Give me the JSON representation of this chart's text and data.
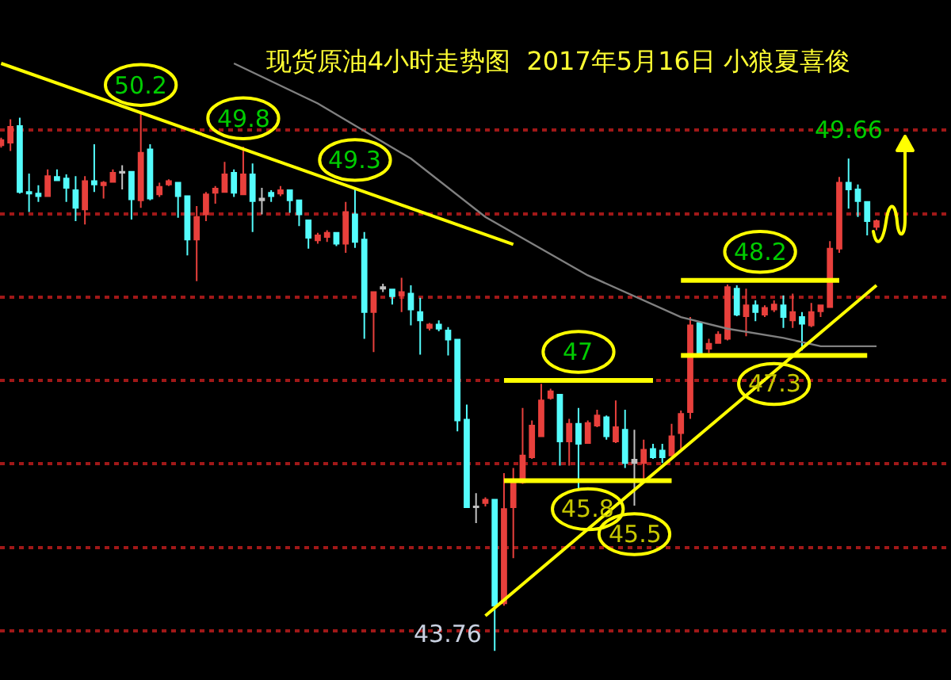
{
  "chart_data": {
    "type": "candlestick",
    "title": "现货原油4小时走势图  2017年5月16日 小狼夏喜俊",
    "categories": [
      null,
      null,
      null,
      null,
      null,
      null,
      null,
      null,
      null,
      null,
      null,
      null,
      null,
      null,
      null,
      null,
      null,
      null,
      null,
      null,
      null,
      null,
      null,
      null,
      null,
      null,
      null,
      null,
      null,
      null,
      null,
      null,
      null,
      null,
      null,
      null,
      null,
      null,
      null,
      null,
      null,
      null,
      null,
      null,
      null,
      null,
      null,
      null,
      null,
      null,
      null,
      null,
      null,
      null,
      null,
      null,
      null,
      null,
      null,
      null,
      null,
      null,
      null,
      null,
      null,
      null,
      null,
      null,
      null,
      null,
      null,
      null,
      null,
      null,
      null,
      null,
      null,
      null,
      null,
      null,
      null,
      null,
      null,
      null,
      null,
      null,
      null,
      null,
      null,
      null,
      null,
      null,
      null,
      null,
      null
    ],
    "ohlc": [
      [
        49.82,
        49.91,
        49.79,
        49.88
      ],
      [
        49.85,
        50.13,
        49.75,
        50.04
      ],
      [
        50.05,
        50.15,
        49.24,
        49.26
      ],
      [
        49.26,
        49.48,
        49.02,
        49.24
      ],
      [
        49.24,
        49.34,
        49.14,
        49.21
      ],
      [
        49.21,
        49.53,
        49.2,
        49.45
      ],
      [
        49.44,
        49.53,
        49.39,
        49.4
      ],
      [
        49.42,
        49.47,
        49.14,
        49.31
      ],
      [
        49.28,
        49.45,
        48.91,
        49.07
      ],
      [
        49.05,
        49.45,
        48.87,
        49.39
      ],
      [
        49.39,
        49.83,
        49.26,
        49.35
      ],
      [
        49.34,
        49.39,
        49.18,
        49.37
      ],
      [
        49.38,
        49.53,
        49.37,
        49.49
      ],
      [
        49.5,
        49.58,
        49.29,
        49.49
      ],
      [
        49.5,
        49.5,
        48.93,
        49.17
      ],
      [
        49.16,
        50.2,
        49.07,
        49.73
      ],
      [
        49.77,
        49.83,
        49.16,
        49.18
      ],
      [
        49.23,
        49.37,
        49.2,
        49.32
      ],
      [
        49.35,
        49.41,
        49.33,
        49.39
      ],
      [
        49.37,
        49.37,
        48.95,
        49.21
      ],
      [
        49.21,
        49.21,
        48.5,
        48.69
      ],
      [
        48.69,
        49.09,
        48.19,
        48.96
      ],
      [
        48.99,
        49.26,
        48.91,
        49.23
      ],
      [
        49.25,
        49.33,
        49.12,
        49.3
      ],
      [
        49.26,
        49.62,
        49.25,
        49.47
      ],
      [
        49.49,
        49.53,
        49.2,
        49.25
      ],
      [
        49.23,
        49.8,
        49.22,
        49.47
      ],
      [
        49.47,
        49.6,
        48.78,
        49.15
      ],
      [
        49.18,
        49.31,
        48.99,
        49.16
      ],
      [
        49.25,
        49.28,
        49.14,
        49.21
      ],
      [
        49.24,
        49.33,
        49.21,
        49.28
      ],
      [
        49.28,
        49.28,
        49.01,
        49.16
      ],
      [
        49.16,
        49.16,
        48.85,
        48.99
      ],
      [
        48.92,
        48.93,
        48.58,
        48.71
      ],
      [
        48.68,
        48.77,
        48.64,
        48.74
      ],
      [
        48.72,
        48.8,
        48.66,
        48.77
      ],
      [
        48.77,
        48.78,
        48.61,
        48.64
      ],
      [
        48.64,
        49.14,
        48.53,
        49.02
      ],
      [
        48.99,
        49.3,
        48.59,
        48.66
      ],
      [
        48.69,
        48.78,
        47.5,
        47.82
      ],
      [
        47.82,
        48.07,
        47.34,
        48.06
      ],
      [
        48.12,
        48.16,
        48.06,
        48.1
      ],
      [
        48.09,
        48.1,
        47.91,
        48.01
      ],
      [
        48.02,
        48.23,
        47.82,
        48.06
      ],
      [
        48.04,
        48.14,
        47.66,
        47.85
      ],
      [
        47.82,
        47.99,
        47.31,
        47.72
      ],
      [
        47.63,
        47.69,
        47.6,
        47.67
      ],
      [
        47.67,
        47.72,
        47.59,
        47.62
      ],
      [
        47.6,
        47.64,
        47.3,
        47.49
      ],
      [
        47.49,
        47.5,
        46.39,
        46.52
      ],
      [
        46.53,
        46.71,
        45.48,
        45.48
      ],
      [
        45.49,
        45.65,
        45.29,
        45.48
      ],
      [
        45.53,
        45.6,
        45.49,
        45.57
      ],
      [
        45.57,
        45.57,
        43.76,
        44.3
      ],
      [
        44.33,
        45.89,
        44.3,
        45.46
      ],
      [
        45.48,
        45.95,
        44.87,
        45.8
      ],
      [
        45.78,
        46.67,
        45.76,
        46.1
      ],
      [
        46.08,
        46.52,
        46.06,
        46.46
      ],
      [
        46.33,
        46.96,
        46.33,
        46.76
      ],
      [
        46.79,
        46.9,
        46.77,
        46.87
      ],
      [
        46.83,
        46.83,
        45.98,
        46.27
      ],
      [
        46.27,
        46.54,
        45.98,
        46.48
      ],
      [
        46.48,
        46.67,
        45.7,
        46.24
      ],
      [
        46.25,
        46.52,
        46.24,
        46.49
      ],
      [
        46.46,
        46.65,
        46.44,
        46.58
      ],
      [
        46.56,
        46.58,
        46.29,
        46.33
      ],
      [
        46.27,
        46.76,
        46.25,
        46.44
      ],
      [
        46.41,
        46.65,
        45.95,
        46.01
      ],
      [
        46.05,
        46.41,
        45.5,
        46.01
      ],
      [
        46.01,
        46.29,
        45.82,
        46.17
      ],
      [
        46.18,
        46.24,
        46.06,
        46.08
      ],
      [
        46.16,
        46.24,
        46.01,
        46.08
      ],
      [
        46.1,
        46.48,
        46.1,
        46.33
      ],
      [
        46.37,
        46.64,
        46.18,
        46.6
      ],
      [
        46.62,
        47.76,
        46.54,
        47.66
      ],
      [
        47.69,
        47.71,
        47.3,
        47.31
      ],
      [
        47.38,
        47.5,
        47.33,
        47.44
      ],
      [
        47.45,
        47.59,
        47.44,
        47.55
      ],
      [
        47.5,
        48.15,
        47.48,
        48.12
      ],
      [
        48.1,
        48.14,
        47.77,
        47.79
      ],
      [
        47.77,
        48.1,
        47.53,
        47.9
      ],
      [
        47.9,
        47.96,
        47.71,
        47.82
      ],
      [
        47.79,
        47.9,
        47.76,
        47.87
      ],
      [
        47.85,
        47.96,
        47.82,
        47.91
      ],
      [
        47.9,
        48.02,
        47.63,
        47.76
      ],
      [
        47.72,
        48.04,
        47.63,
        47.82
      ],
      [
        47.76,
        47.82,
        47.36,
        47.68
      ],
      [
        47.66,
        47.93,
        47.64,
        47.82
      ],
      [
        47.83,
        47.91,
        47.76,
        47.9
      ],
      [
        47.88,
        48.67,
        47.87,
        48.58
      ],
      [
        48.58,
        49.44,
        48.53,
        49.37
      ],
      [
        49.37,
        49.66,
        49.06,
        49.29
      ],
      [
        49.29,
        49.35,
        48.96,
        49.15
      ],
      [
        49.14,
        49.15,
        48.74,
        48.91
      ],
      [
        48.84,
        48.93,
        48.8,
        48.91
      ]
    ],
    "colors": [
      "#e8403c",
      "#e8403c",
      "#54fcfc",
      "#54fcfc",
      "#54fcfc",
      "#e8403c",
      "#54fcfc",
      "#54fcfc",
      "#54fcfc",
      "#e8403c",
      "#54fcfc",
      "#e8403c",
      "#e8403c",
      "#c0c0c0",
      "#54fcfc",
      "#e8403c",
      "#54fcfc",
      "#e8403c",
      "#e8403c",
      "#54fcfc",
      "#54fcfc",
      "#e8403c",
      "#e8403c",
      "#e8403c",
      "#e8403c",
      "#54fcfc",
      "#e8403c",
      "#54fcfc",
      "#c0c0c0",
      "#54fcfc",
      "#e8403c",
      "#54fcfc",
      "#54fcfc",
      "#54fcfc",
      "#e8403c",
      "#e8403c",
      "#54fcfc",
      "#e8403c",
      "#54fcfc",
      "#54fcfc",
      "#e8403c",
      "#c0c0c0",
      "#54fcfc",
      "#e8403c",
      "#54fcfc",
      "#54fcfc",
      "#e8403c",
      "#54fcfc",
      "#54fcfc",
      "#54fcfc",
      "#54fcfc",
      "#c0c0c0",
      "#e8403c",
      "#54fcfc",
      "#e8403c",
      "#e8403c",
      "#e8403c",
      "#e8403c",
      "#e8403c",
      "#e8403c",
      "#54fcfc",
      "#e8403c",
      "#54fcfc",
      "#e8403c",
      "#e8403c",
      "#54fcfc",
      "#e8403c",
      "#54fcfc",
      "#c0c0c0",
      "#e8403c",
      "#54fcfc",
      "#54fcfc",
      "#e8403c",
      "#e8403c",
      "#e8403c",
      "#54fcfc",
      "#e8403c",
      "#e8403c",
      "#e8403c",
      "#54fcfc",
      "#e8403c",
      "#54fcfc",
      "#e8403c",
      "#e8403c",
      "#54fcfc",
      "#e8403c",
      "#54fcfc",
      "#e8403c",
      "#e8403c",
      "#e8403c",
      "#e8403c",
      "#54fcfc",
      "#54fcfc",
      "#54fcfc",
      "#e8403c"
    ],
    "series": [
      {
        "type": "line",
        "color": "#808080",
        "values": [
          null,
          null,
          null,
          null,
          null,
          null,
          null,
          null,
          null,
          null,
          null,
          null,
          null,
          null,
          null,
          null,
          null,
          null,
          null,
          null,
          null,
          null,
          null,
          null,
          null,
          50.8,
          null,
          null,
          null,
          null,
          null,
          null,
          null,
          null,
          50.32,
          null,
          null,
          null,
          null,
          null,
          null,
          null,
          null,
          null,
          49.66,
          null,
          null,
          null,
          null,
          null,
          null,
          null,
          48.96,
          null,
          null,
          null,
          null,
          null,
          null,
          null,
          null,
          null,
          null,
          48.26,
          null,
          null,
          null,
          null,
          null,
          null,
          null,
          null,
          null,
          47.76,
          null,
          null,
          null,
          null,
          47.62,
          null,
          null,
          null,
          null,
          null,
          47.51,
          null,
          null,
          null,
          47.41,
          null,
          null,
          null,
          null,
          null,
          47.41
        ]
      },
      {
        "type": "line",
        "color": "#ffff00",
        "values": [
          50.8,
          null,
          null,
          null,
          null,
          null,
          null,
          null,
          null,
          null,
          null,
          null,
          null,
          null,
          null,
          null,
          null,
          null,
          null,
          null,
          null,
          null,
          null,
          null,
          null,
          null,
          null,
          null,
          null,
          null,
          null,
          null,
          null,
          null,
          null,
          null,
          null,
          null,
          null,
          null,
          null,
          null,
          null,
          null,
          null,
          null,
          null,
          null,
          null,
          null,
          null,
          null,
          null,
          null,
          null,
          48.63,
          null,
          null,
          null,
          null,
          null,
          null,
          null,
          null,
          null,
          null,
          null,
          null,
          null,
          null,
          null,
          null,
          null,
          null,
          null,
          null,
          null,
          null,
          null,
          null,
          null,
          null,
          null,
          null,
          null,
          null,
          null,
          null,
          null,
          null,
          null,
          null,
          null,
          null,
          null
        ]
      },
      {
        "type": "line",
        "color": "#ffff00",
        "values": [
          null,
          null,
          null,
          null,
          null,
          null,
          null,
          null,
          null,
          null,
          null,
          null,
          null,
          null,
          null,
          null,
          null,
          null,
          null,
          null,
          null,
          null,
          null,
          null,
          null,
          null,
          null,
          null,
          null,
          null,
          null,
          null,
          null,
          null,
          null,
          null,
          null,
          null,
          null,
          null,
          null,
          null,
          null,
          null,
          null,
          null,
          null,
          null,
          null,
          null,
          null,
          null,
          44.18,
          null,
          null,
          null,
          null,
          null,
          null,
          null,
          null,
          null,
          null,
          null,
          null,
          null,
          null,
          null,
          null,
          null,
          null,
          null,
          null,
          null,
          null,
          null,
          null,
          null,
          null,
          null,
          null,
          null,
          null,
          null,
          null,
          null,
          null,
          null,
          null,
          null,
          null,
          null,
          null,
          null,
          48.14
        ]
      },
      {
        "type": "line",
        "color": "#ffff00",
        "values": [
          null,
          null,
          null,
          null,
          null,
          null,
          null,
          null,
          null,
          null,
          null,
          null,
          null,
          null,
          null,
          null,
          null,
          null,
          null,
          null,
          null,
          null,
          null,
          null,
          null,
          null,
          null,
          null,
          null,
          null,
          null,
          null,
          null,
          null,
          null,
          null,
          null,
          null,
          null,
          null,
          null,
          null,
          null,
          null,
          null,
          null,
          null,
          null,
          null,
          null,
          null,
          null,
          null,
          null,
          47,
          null,
          null,
          null,
          null,
          null,
          null,
          null,
          null,
          null,
          null,
          null,
          null,
          null,
          null,
          null,
          47,
          null,
          null,
          null,
          null,
          null,
          null,
          null,
          null,
          null,
          null,
          null,
          null,
          null,
          null,
          null,
          null,
          null,
          null,
          null,
          null,
          null,
          null,
          null,
          null
        ]
      },
      {
        "type": "line",
        "color": "#ffff00",
        "values": [
          null,
          null,
          null,
          null,
          null,
          null,
          null,
          null,
          null,
          null,
          null,
          null,
          null,
          null,
          null,
          null,
          null,
          null,
          null,
          null,
          null,
          null,
          null,
          null,
          null,
          null,
          null,
          null,
          null,
          null,
          null,
          null,
          null,
          null,
          null,
          null,
          null,
          null,
          null,
          null,
          null,
          null,
          null,
          null,
          null,
          null,
          null,
          null,
          null,
          null,
          null,
          null,
          null,
          null,
          45.8,
          null,
          null,
          null,
          null,
          null,
          null,
          null,
          null,
          null,
          null,
          null,
          null,
          null,
          null,
          null,
          null,
          null,
          45.8,
          null,
          null,
          null,
          null,
          null,
          null,
          null,
          null,
          null,
          null,
          null,
          null,
          null,
          null,
          null,
          null,
          null,
          null,
          null,
          null,
          null,
          null
        ]
      },
      {
        "type": "line",
        "color": "#ffff00",
        "values": [
          null,
          null,
          null,
          null,
          null,
          null,
          null,
          null,
          null,
          null,
          null,
          null,
          null,
          null,
          null,
          null,
          null,
          null,
          null,
          null,
          null,
          null,
          null,
          null,
          null,
          null,
          null,
          null,
          null,
          null,
          null,
          null,
          null,
          null,
          null,
          null,
          null,
          null,
          null,
          null,
          null,
          null,
          null,
          null,
          null,
          null,
          null,
          null,
          null,
          null,
          null,
          null,
          null,
          null,
          null,
          null,
          null,
          null,
          null,
          null,
          null,
          null,
          null,
          null,
          null,
          null,
          null,
          null,
          null,
          null,
          null,
          null,
          null,
          48.2,
          null,
          null,
          null,
          null,
          null,
          null,
          null,
          null,
          null,
          null,
          null,
          null,
          null,
          null,
          null,
          null,
          48.2,
          null,
          null,
          null,
          null
        ]
      },
      {
        "type": "line",
        "color": "#ffff00",
        "values": [
          null,
          null,
          null,
          null,
          null,
          null,
          null,
          null,
          null,
          null,
          null,
          null,
          null,
          null,
          null,
          null,
          null,
          null,
          null,
          null,
          null,
          null,
          null,
          null,
          null,
          null,
          null,
          null,
          null,
          null,
          null,
          null,
          null,
          null,
          null,
          null,
          null,
          null,
          null,
          null,
          null,
          null,
          null,
          null,
          null,
          null,
          null,
          null,
          null,
          null,
          null,
          null,
          null,
          null,
          null,
          null,
          null,
          null,
          null,
          null,
          null,
          null,
          null,
          null,
          null,
          null,
          null,
          null,
          null,
          null,
          null,
          null,
          null,
          47.3,
          null,
          null,
          null,
          null,
          null,
          null,
          null,
          null,
          null,
          null,
          null,
          null,
          null,
          null,
          null,
          null,
          null,
          null,
          null,
          47.3,
          null
        ]
      }
    ],
    "annotations": [
      {
        "text": "50.2",
        "y": 50.2
      },
      {
        "text": "49.8",
        "y": 49.8
      },
      {
        "text": "49.3",
        "y": 49.3
      },
      {
        "text": "47",
        "y": 47
      },
      {
        "text": "45.8",
        "y": 45.8
      },
      {
        "text": "45.5",
        "y": 45.5
      },
      {
        "text": "48.2",
        "y": 48.2
      },
      {
        "text": "47.3",
        "y": 47.3
      },
      {
        "text": "49.66",
        "y": 49.66
      },
      "43.76"
    ],
    "ylim": [
      43.41,
      51.56
    ],
    "yticks": [
      {
        "value": 44,
        "label": null
      },
      {
        "value": 45,
        "label": null
      },
      {
        "value": 46,
        "label": null
      },
      {
        "value": 47,
        "label": null
      },
      {
        "value": 48,
        "label": null
      },
      {
        "value": 49,
        "label": null
      },
      {
        "value": 50,
        "label": null
      }
    ],
    "grid": "y"
  }
}
